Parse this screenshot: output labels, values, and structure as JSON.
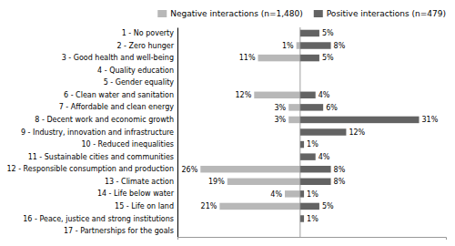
{
  "chart_data": {
    "type": "bar",
    "orientation": "horizontal",
    "categories": [
      "1 - No poverty",
      "2 - Zero hunger",
      "3 - Good health and well-being",
      "4 - Quality education",
      "5 - Gender equality",
      "6 - Clean water and sanitation",
      "7 - Affordable and clean energy",
      "8 - Decent work and economic growth",
      "9 - Industry, innovation and infrastructure",
      "10 - Reduced inequalities",
      "11 - Sustainable cities and communities",
      "12 - Responsible consumption and production",
      "13 - Climate action",
      "14 - Life below water",
      "15 - Life on land",
      "16 - Peace, justice and strong institutions",
      "17 - Partnerships for the goals"
    ],
    "series": [
      {
        "name": "Negative interactions (n=1,480)",
        "color": "#b8b8b8",
        "values": [
          0,
          1,
          11,
          0,
          0,
          12,
          3,
          3,
          0,
          0,
          0,
          26,
          19,
          4,
          21,
          0,
          0
        ],
        "value_labels": [
          null,
          "1%",
          "11%",
          null,
          null,
          "12%",
          "3%",
          "3%",
          null,
          null,
          null,
          "26%",
          "19%",
          "4%",
          "21%",
          null,
          null
        ]
      },
      {
        "name": "Positive interactions (n=479)",
        "color": "#636363",
        "values": [
          5,
          8,
          5,
          0,
          0,
          4,
          6,
          31,
          12,
          1,
          4,
          8,
          8,
          1,
          5,
          1,
          0
        ],
        "value_labels": [
          "5%",
          "8%",
          "5%",
          null,
          null,
          "4%",
          "6%",
          "31%",
          "12%",
          "1%",
          "4%",
          "8%",
          "8%",
          "1%",
          "5%",
          "1%",
          null
        ]
      }
    ],
    "xlim": [
      -32,
      38
    ],
    "tick_labels": "y",
    "grid": false,
    "legend": "top-right",
    "data_labels": true
  }
}
